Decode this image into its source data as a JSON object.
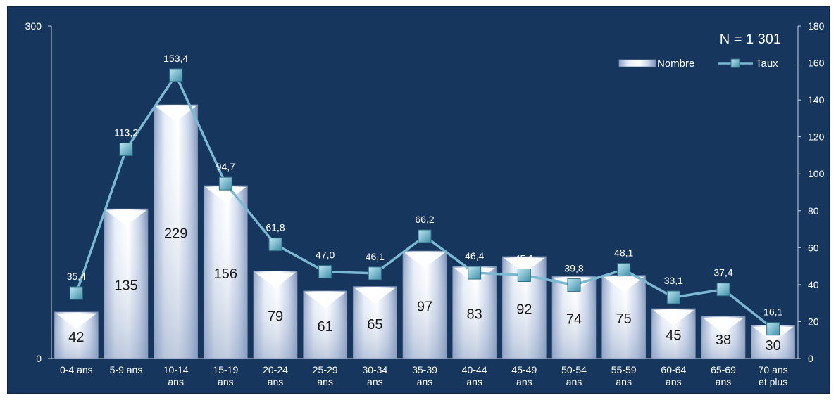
{
  "chart_data": {
    "type": "bar",
    "annotation": "N = 1 301",
    "categories": [
      "0-4 ans",
      "5-9 ans",
      "10-14 ans",
      "15-19 ans",
      "20-24 ans",
      "25-29 ans",
      "30-34 ans",
      "35-39 ans",
      "40-44 ans",
      "45-49 ans",
      "50-54 ans",
      "55-59 ans",
      "60-64 ans",
      "65-69 ans",
      "70 ans et plus"
    ],
    "category_lines": [
      [
        "0-4 ans"
      ],
      [
        "5-9 ans"
      ],
      [
        "10-14",
        "ans"
      ],
      [
        "15-19",
        "ans"
      ],
      [
        "20-24",
        "ans"
      ],
      [
        "25-29",
        "ans"
      ],
      [
        "30-34",
        "ans"
      ],
      [
        "35-39",
        "ans"
      ],
      [
        "40-44",
        "ans"
      ],
      [
        "45-49",
        "ans"
      ],
      [
        "50-54",
        "ans"
      ],
      [
        "55-59",
        "ans"
      ],
      [
        "60-64",
        "ans"
      ],
      [
        "65-69",
        "ans"
      ],
      [
        "70 ans",
        "et plus"
      ]
    ],
    "series": [
      {
        "name": "Nombre",
        "type": "bar",
        "axis": "left",
        "values": [
          42,
          135,
          229,
          156,
          79,
          61,
          65,
          97,
          83,
          92,
          74,
          75,
          45,
          38,
          30
        ],
        "labels": [
          "42",
          "135",
          "229",
          "156",
          "79",
          "61",
          "65",
          "97",
          "83",
          "92",
          "74",
          "75",
          "45",
          "38",
          "30"
        ]
      },
      {
        "name": "Taux",
        "type": "line",
        "axis": "right",
        "values": [
          35.4,
          113.2,
          153.4,
          94.7,
          61.8,
          47.0,
          46.1,
          66.2,
          46.4,
          45.1,
          39.8,
          48.1,
          33.1,
          37.4,
          16.1
        ],
        "labels": [
          "35,4",
          "113,2",
          "153,4",
          "94,7",
          "61,8",
          "47,0",
          "46,1",
          "66,2",
          "46,4",
          "45,1",
          "39,8",
          "48,1",
          "33,1",
          "37,4",
          "16,1"
        ]
      }
    ],
    "y_left": {
      "min": 0,
      "max": 300,
      "ticks": [
        0,
        300
      ],
      "tick_labels": [
        "0",
        "300"
      ]
    },
    "y_right": {
      "min": 0,
      "max": 180,
      "ticks": [
        0,
        20,
        40,
        60,
        80,
        100,
        120,
        140,
        160,
        180
      ],
      "tick_labels": [
        "0",
        "20",
        "40",
        "60",
        "80",
        "100",
        "120",
        "140",
        "160",
        "180"
      ]
    },
    "legend": {
      "position": "top-right",
      "entries": [
        "Nombre",
        "Taux"
      ]
    },
    "grid": false,
    "colors": {
      "background": "#17365d",
      "bar": "#c6d3ea",
      "line": "#7ab9d1",
      "marker": "#5aa2bb",
      "text": "#ffffff"
    }
  }
}
